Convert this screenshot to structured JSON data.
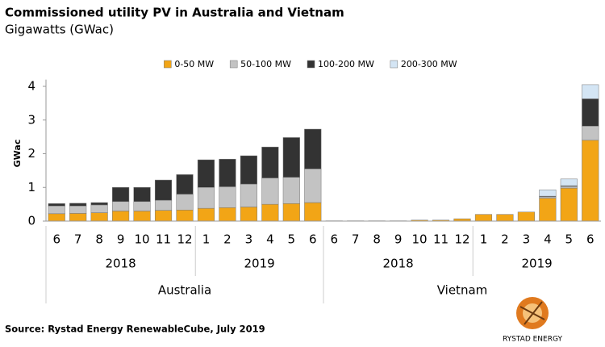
{
  "chart_data": {
    "type": "stacked_bar",
    "title": "Commissioned utility PV in Australia and Vietnam",
    "subtitle": "Gigawatts (GWac)",
    "ylabel": "GWac",
    "source": "Source: Rystad Energy RenewableCube, July 2019",
    "brand": "RYSTAD ENERGY",
    "ylim": [
      0,
      4.2
    ],
    "yticks": [
      0,
      1,
      2,
      3,
      4
    ],
    "grid": false,
    "legend": "top",
    "groups": [
      {
        "name": "Australia",
        "subgroups": [
          {
            "name": "2018",
            "categories": [
              "6",
              "7",
              "8",
              "9",
              "10",
              "11",
              "12"
            ]
          },
          {
            "name": "2019",
            "categories": [
              "1",
              "2",
              "3",
              "4",
              "5",
              "6"
            ]
          }
        ]
      },
      {
        "name": "Vietnam",
        "subgroups": [
          {
            "name": "2018",
            "categories": [
              "6",
              "7",
              "8",
              "9",
              "10",
              "11",
              "12"
            ]
          },
          {
            "name": "2019",
            "categories": [
              "1",
              "2",
              "3",
              "4",
              "5",
              "6"
            ]
          }
        ]
      }
    ],
    "series": [
      {
        "name": "0-50 MW",
        "color": "#f2a516",
        "values": [
          0.22,
          0.23,
          0.25,
          0.3,
          0.3,
          0.32,
          0.33,
          0.38,
          0.4,
          0.42,
          0.5,
          0.52,
          0.55,
          0.01,
          0.01,
          0.01,
          0.01,
          0.03,
          0.03,
          0.07,
          0.2,
          0.2,
          0.27,
          0.68,
          0.98,
          2.4
        ]
      },
      {
        "name": "50-100 MW",
        "color": "#c3c3c3",
        "values": [
          0.23,
          0.22,
          0.23,
          0.28,
          0.28,
          0.3,
          0.47,
          0.62,
          0.62,
          0.68,
          0.78,
          0.78,
          1.0,
          0,
          0,
          0,
          0,
          0,
          0,
          0,
          0,
          0,
          0,
          0.04,
          0.05,
          0.42
        ]
      },
      {
        "name": "100-200 MW",
        "color": "#333333",
        "values": [
          0.07,
          0.08,
          0.07,
          0.42,
          0.42,
          0.6,
          0.58,
          0.82,
          0.82,
          0.84,
          0.92,
          1.18,
          1.18,
          0,
          0,
          0,
          0,
          0,
          0,
          0,
          0,
          0,
          0,
          0.02,
          0.02,
          0.81
        ]
      },
      {
        "name": "200-300 MW",
        "color": "#d4e5f4",
        "values": [
          0,
          0,
          0,
          0,
          0,
          0,
          0,
          0,
          0,
          0,
          0,
          0,
          0,
          0,
          0,
          0,
          0,
          0,
          0,
          0,
          0,
          0,
          0,
          0.19,
          0.2,
          0.42
        ]
      }
    ]
  }
}
